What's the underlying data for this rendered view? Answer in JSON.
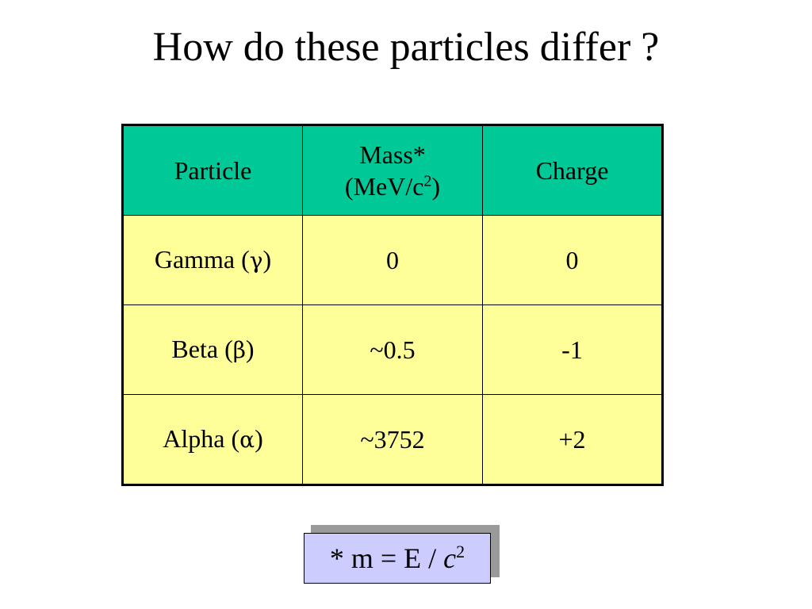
{
  "slide": {
    "title": "How do these particles differ ?"
  },
  "table": {
    "headers": {
      "particle": "Particle",
      "mass_line1": "Mass*",
      "mass_line2_pre": "(MeV/c",
      "mass_line2_sup": "2",
      "mass_line2_post": ")",
      "charge": "Charge"
    },
    "rows": [
      {
        "name": "Gamma (",
        "symbol": "γ",
        "close": ")",
        "mass": "0",
        "charge": "0"
      },
      {
        "name": "Beta (",
        "symbol": "β",
        "close": ")",
        "mass": "~0.5",
        "charge": "-1"
      },
      {
        "name": "Alpha (",
        "symbol": "α",
        "close": ")",
        "mass": "~3752",
        "charge": "+2"
      }
    ]
  },
  "footnote": {
    "prefix": "* m = E / ",
    "variable": "c",
    "exponent": "2"
  },
  "colors": {
    "header_bg": "#00c896",
    "cell_bg": "#ffff99",
    "note_bg": "#ccccff",
    "note_shadow": "#9a9a9a"
  }
}
